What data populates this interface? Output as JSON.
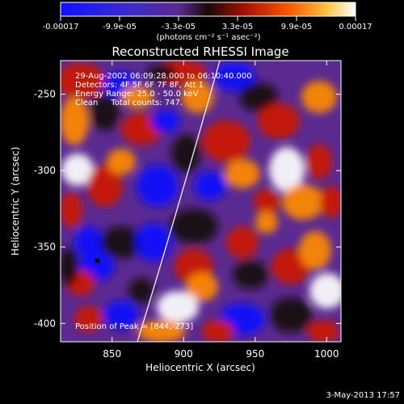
{
  "colorbar": {
    "tick_labels": [
      "-0.00017",
      "-9.9e-05",
      "-3.3e-05",
      "3.3e-05",
      "9.9e-05",
      "0.00017"
    ],
    "range": [
      -0.00017,
      0.00017
    ],
    "unit_label": "(photons cm⁻² s⁻¹ asec⁻²)",
    "colors": [
      "#1010ff",
      "#5a2aa8",
      "#1a0a0a",
      "#cc1a00",
      "#ff8a00",
      "#ffffff"
    ]
  },
  "plot": {
    "title": "Reconstructed RHESSI Image",
    "xlabel": "Heliocentric X (arcsec)",
    "ylabel": "Heliocentric Y (arcsec)",
    "x_ticks": [
      "850",
      "900",
      "950",
      "1000"
    ],
    "y_ticks": [
      "-250",
      "-300",
      "-350",
      "-400"
    ],
    "xlim": [
      814,
      1010
    ],
    "ylim": [
      -412,
      -228
    ]
  },
  "annotations": {
    "line1": "29-Aug-2002 06:09:28.000 to 06:10:40.000",
    "line2": "Detectors: 4F 5F 6F 7F 8F, Att 1",
    "line3": "Energy Range: 25.0 - 50.0 keV",
    "line4": "Clean     Total counts: 747.",
    "peak_label": "Position of Peak = [844,-273]"
  },
  "footer": {
    "timestamp": "3-May-2013 17:57"
  }
}
